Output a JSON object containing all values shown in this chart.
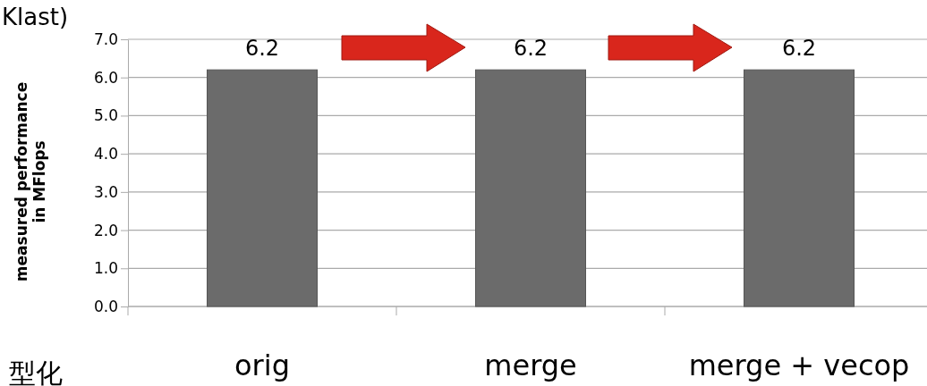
{
  "chart_data": {
    "type": "bar",
    "categories": [
      "orig",
      "merge",
      "merge + vecop"
    ],
    "values": [
      6.2,
      6.2,
      6.2
    ],
    "color": "#6b6b6b",
    "data_labels": true,
    "ylabel": "measured performance\nin MFlops",
    "ylim": [
      0,
      7
    ],
    "yticks": [
      {
        "value": 0,
        "label": "0.0"
      },
      {
        "value": 1,
        "label": "1.0"
      },
      {
        "value": 2,
        "label": "2.0"
      },
      {
        "value": 3,
        "label": "3.0"
      },
      {
        "value": 4,
        "label": "4.0"
      },
      {
        "value": 5,
        "label": "5.0"
      },
      {
        "value": 6,
        "label": "6.0"
      },
      {
        "value": 7,
        "label": "7.0"
      }
    ],
    "grid": "y",
    "annotations": [
      "Klast)",
      "型化"
    ]
  }
}
